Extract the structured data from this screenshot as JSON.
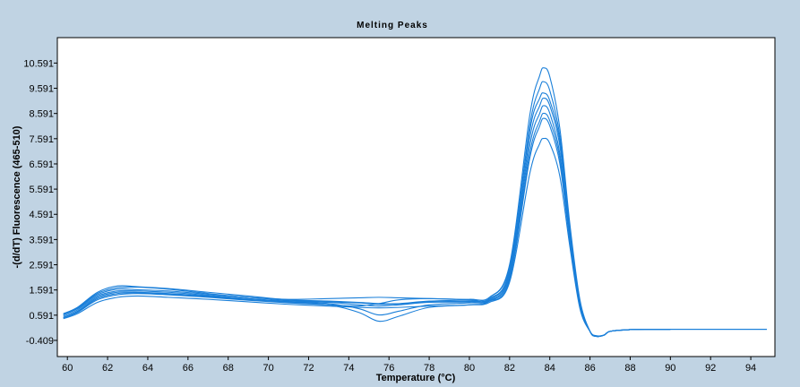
{
  "chart_data": {
    "type": "line",
    "title": "Melting Peaks",
    "xlabel": "Temperature (°C)",
    "ylabel": "-(d/dT) Fluorescence (465-510)",
    "xlim": [
      59.5,
      95.2
    ],
    "ylim": [
      -1.05,
      11.6
    ],
    "x_ticks": [
      60,
      62,
      64,
      66,
      68,
      70,
      72,
      74,
      76,
      78,
      80,
      82,
      84,
      86,
      88,
      90,
      92,
      94
    ],
    "y_ticks": [
      -0.409,
      0.591,
      1.591,
      2.591,
      3.591,
      4.591,
      5.591,
      6.591,
      7.591,
      8.591,
      9.591,
      10.591
    ],
    "y_tick_labels": [
      "-0.409",
      "0.591",
      "1.591",
      "2.591",
      "3.591",
      "4.591",
      "5.591",
      "6.591",
      "7.591",
      "8.591",
      "9.591",
      "10.591"
    ],
    "grid": false,
    "line_color": "#1a7fd9",
    "series": [
      {
        "x": [
          59.8,
          60.5,
          61.5,
          62.5,
          63.5,
          65,
          67,
          69,
          71,
          73,
          74.5,
          75.5,
          76.5,
          78,
          80,
          81,
          82,
          83,
          83.5,
          83.7,
          84,
          84.5,
          85,
          85.5,
          86,
          86.3,
          86.7,
          87,
          88,
          89,
          90,
          92,
          94.8
        ],
        "values": [
          0.65,
          0.9,
          1.5,
          1.75,
          1.72,
          1.65,
          1.5,
          1.35,
          1.2,
          1.15,
          1.1,
          1.05,
          1.05,
          1.15,
          1.2,
          1.3,
          2.6,
          8.5,
          10.1,
          10.4,
          10.05,
          8.0,
          4.2,
          1.2,
          -0.05,
          -0.25,
          -0.2,
          -0.05,
          0.02,
          0.03,
          0.03,
          0.03,
          0.03
        ]
      },
      {
        "x": [
          59.8,
          60.5,
          61.5,
          62.5,
          63.5,
          65,
          67,
          69,
          71,
          73,
          74.5,
          75.5,
          76.5,
          78,
          80,
          81,
          82,
          83,
          83.5,
          83.7,
          84,
          84.5,
          85,
          85.5,
          86,
          86.3,
          86.7,
          87,
          88,
          89,
          90,
          92,
          94.8
        ],
        "values": [
          0.6,
          0.85,
          1.4,
          1.62,
          1.6,
          1.55,
          1.42,
          1.3,
          1.18,
          1.12,
          1.08,
          1.02,
          1.04,
          1.12,
          1.15,
          1.25,
          2.4,
          8.1,
          9.6,
          9.85,
          9.5,
          7.7,
          4.0,
          1.1,
          -0.05,
          -0.24,
          -0.2,
          -0.05,
          0.02,
          0.03,
          0.03,
          0.03,
          0.03
        ]
      },
      {
        "x": [
          59.8,
          60.5,
          61.5,
          62.5,
          63.5,
          65,
          67,
          69,
          71,
          73,
          74.5,
          75.5,
          76.5,
          78,
          80,
          81,
          82,
          83,
          83.5,
          83.7,
          84,
          84.5,
          85,
          85.5,
          86,
          86.3,
          86.7,
          87,
          88,
          89,
          90
        ],
        "values": [
          0.55,
          0.8,
          1.35,
          1.55,
          1.55,
          1.5,
          1.38,
          1.25,
          1.15,
          1.1,
          1.0,
          0.95,
          1.0,
          1.1,
          1.12,
          1.22,
          2.3,
          7.6,
          8.9,
          9.2,
          8.9,
          7.3,
          3.9,
          1.05,
          -0.05,
          -0.25,
          -0.2,
          -0.05,
          0.02,
          0.03,
          0.03
        ]
      },
      {
        "x": [
          59.8,
          60.5,
          61.5,
          62.5,
          63.5,
          65,
          67,
          69,
          71,
          73,
          74.5,
          75.5,
          76.5,
          78,
          80,
          81,
          82,
          83,
          83.5,
          83.7,
          84,
          84.5,
          85,
          85.5,
          86,
          86.3,
          86.7,
          87,
          88,
          89,
          90
        ],
        "values": [
          0.5,
          0.75,
          1.3,
          1.5,
          1.5,
          1.45,
          1.35,
          1.22,
          1.12,
          1.05,
          0.85,
          0.6,
          0.75,
          1.0,
          1.08,
          1.18,
          2.2,
          7.3,
          8.6,
          8.9,
          8.6,
          7.0,
          3.7,
          1.0,
          -0.05,
          -0.25,
          -0.2,
          -0.05,
          0.02,
          0.03,
          0.03
        ]
      },
      {
        "x": [
          59.8,
          60.5,
          61.5,
          62.5,
          63.5,
          65,
          67,
          69,
          71,
          73,
          74.5,
          75.5,
          76.5,
          78,
          80,
          81,
          82,
          83,
          83.5,
          83.7,
          84,
          84.5,
          85,
          85.5,
          86,
          86.3,
          86.7,
          87,
          88,
          89,
          90
        ],
        "values": [
          0.5,
          0.72,
          1.25,
          1.45,
          1.48,
          1.42,
          1.32,
          1.2,
          1.1,
          1.0,
          0.7,
          0.35,
          0.55,
          0.9,
          1.0,
          1.15,
          2.1,
          7.0,
          8.3,
          8.6,
          8.3,
          6.8,
          3.6,
          0.95,
          -0.05,
          -0.24,
          -0.2,
          -0.05,
          0.02,
          0.03,
          0.03
        ]
      },
      {
        "x": [
          59.8,
          60.5,
          61.5,
          62.5,
          63.5,
          65,
          67,
          69,
          71,
          73,
          74.5,
          75.5,
          76.5,
          78,
          80,
          81,
          82,
          83,
          83.5,
          83.7,
          84,
          84.5,
          85,
          85.5,
          86,
          86.3,
          86.7,
          87,
          88,
          89,
          90
        ],
        "values": [
          0.48,
          0.7,
          1.2,
          1.4,
          1.45,
          1.4,
          1.3,
          1.18,
          1.08,
          1.0,
          0.95,
          1.05,
          1.2,
          1.25,
          1.2,
          1.15,
          2.0,
          6.8,
          8.1,
          8.4,
          8.1,
          6.6,
          3.5,
          0.9,
          -0.05,
          -0.23,
          -0.2,
          -0.05,
          0.02,
          0.03,
          0.03
        ]
      },
      {
        "x": [
          59.8,
          60.5,
          61.5,
          62.5,
          63.5,
          65,
          67,
          69,
          71,
          73,
          74.5,
          75.5,
          76.5,
          78,
          80,
          81,
          82,
          83,
          83.5,
          83.7,
          84,
          84.5,
          85,
          85.5,
          86,
          86.3,
          86.7,
          87,
          88,
          89,
          90
        ],
        "values": [
          0.45,
          0.65,
          1.1,
          1.3,
          1.35,
          1.3,
          1.22,
          1.12,
          1.02,
          0.95,
          0.9,
          0.88,
          0.9,
          0.95,
          1.0,
          1.1,
          1.9,
          6.2,
          7.4,
          7.6,
          7.4,
          6.1,
          3.3,
          0.85,
          -0.05,
          -0.22,
          -0.2,
          -0.05,
          0.02,
          0.03,
          0.03
        ]
      },
      {
        "x": [
          59.8,
          60.5,
          61.5,
          62.5,
          63.5,
          65,
          67,
          69,
          71,
          73,
          74.5,
          75.5,
          76.5,
          78,
          80,
          81,
          82,
          83,
          83.5,
          83.7,
          84,
          84.5,
          85,
          85.5,
          86,
          86.3,
          86.7,
          87,
          88,
          89,
          90
        ],
        "values": [
          0.62,
          0.88,
          1.45,
          1.68,
          1.7,
          1.62,
          1.45,
          1.3,
          1.22,
          1.25,
          1.28,
          1.3,
          1.28,
          1.25,
          1.22,
          1.3,
          2.5,
          7.9,
          9.2,
          9.4,
          9.1,
          7.5,
          4.0,
          1.15,
          -0.05,
          -0.25,
          -0.2,
          -0.05,
          0.02,
          0.03,
          0.03
        ]
      }
    ]
  }
}
